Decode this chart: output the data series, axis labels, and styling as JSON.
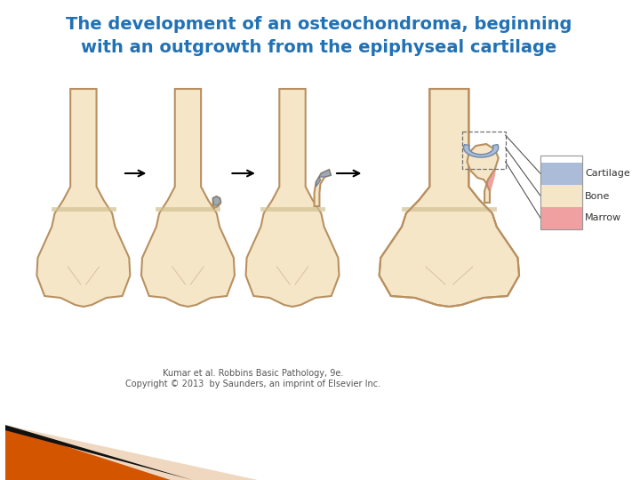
{
  "title_line1": "The development of an osteochondroma, beginning",
  "title_line2": "with an outgrowth from the epiphyseal cartilage",
  "title_color": "#2171b5",
  "title_fontsize": 14,
  "bg_color": "#ffffff",
  "bone_fill": "#f5e6c8",
  "bone_edge": "#b89060",
  "marrow_fill": "#f0a0a0",
  "cartilage_fill": "#aabcd8",
  "growth_plate_fill": "#e0d0a8",
  "arrow_color": "#000000",
  "legend_cartilage": "#aabcd8",
  "legend_bone": "#f5e6c8",
  "legend_marrow": "#f0a0a0",
  "copyright_text": "Kumar et al. Robbins Basic Pathology, 9e.\nCopyright © 2013  by Saunders, an imprint of Elsevier Inc.",
  "footer_orange": "#d45500",
  "footer_black": "#111111",
  "footer_tan": "#f0d8c0"
}
